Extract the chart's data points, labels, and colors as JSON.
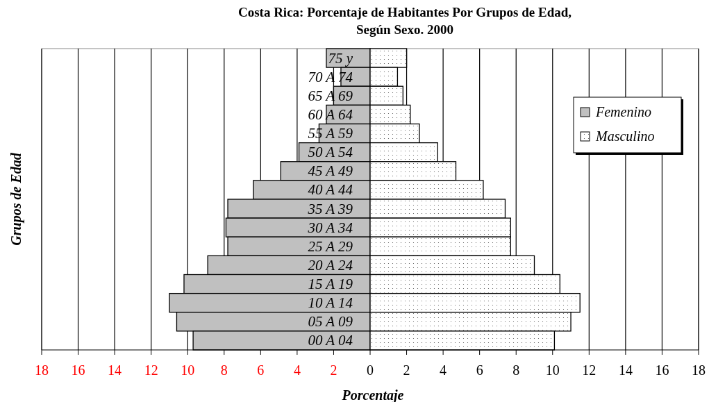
{
  "chart_data": {
    "type": "bar",
    "orientation": "horizontal",
    "stacked": true,
    "title": "Costa Rica:  Porcentaje de Habitantes Por Grupos de Edad,\nSegún Sexo.  2000",
    "xlabel": "Porcentaje",
    "ylabel": "Grupos de Edad",
    "categories": [
      "75 y",
      "70 A 74",
      "65 A 69",
      "60 A 64",
      "55 A 59",
      "50 A 54",
      "45 A 49",
      "40 A 44",
      "35 A 39",
      "30 A 34",
      "25 A 29",
      "20 A 24",
      "15 A 19",
      "10 A 14",
      "05 A 09",
      "00 A 04"
    ],
    "series": [
      {
        "name": "Femenino",
        "color": "#c0c0c0",
        "values": [
          -2.4,
          -1.6,
          -2.0,
          -2.4,
          -2.8,
          -3.9,
          -4.9,
          -6.4,
          -7.8,
          -7.9,
          -7.8,
          -8.9,
          -10.2,
          -11.0,
          -10.6,
          -9.7
        ]
      },
      {
        "name": "Masculino",
        "color": "#ffffff",
        "values": [
          2.0,
          1.5,
          1.8,
          2.2,
          2.7,
          3.7,
          4.7,
          6.2,
          7.4,
          7.7,
          7.7,
          9.0,
          10.4,
          11.5,
          11.0,
          10.1
        ]
      }
    ],
    "xlim": [
      -18,
      18
    ],
    "xticks": [
      {
        "value": -18,
        "label": "18"
      },
      {
        "value": -16,
        "label": "16"
      },
      {
        "value": -14,
        "label": "14"
      },
      {
        "value": -12,
        "label": "12"
      },
      {
        "value": -10,
        "label": "10"
      },
      {
        "value": -8,
        "label": "8"
      },
      {
        "value": -6,
        "label": "6"
      },
      {
        "value": -4,
        "label": "4"
      },
      {
        "value": -2,
        "label": "2"
      },
      0,
      2,
      4,
      6,
      8,
      10,
      12,
      14,
      16,
      18
    ],
    "grid": "x",
    "legend": "top right"
  }
}
